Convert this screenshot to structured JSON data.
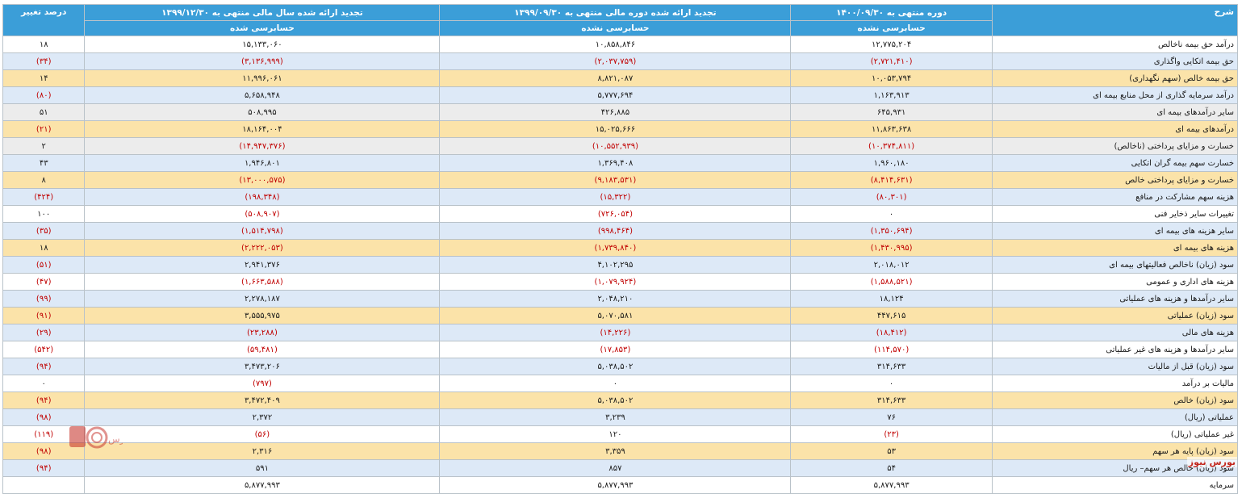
{
  "header": {
    "col_desc": "شرح",
    "col_current": "دوره منتهی به ۱۴۰۰/۰۹/۳۰",
    "col_prev_period": "تجدید ارائه شده دوره مالی منتهی به ۱۳۹۹/۰۹/۳۰",
    "col_prev_year": "تجدید ارائه شده سال مالی منتهی به ۱۳۹۹/۱۲/۳۰",
    "col_change": "درصد تغییر",
    "sub_current": "حسابرسی نشده",
    "sub_prev_period": "حسابرسی نشده",
    "sub_prev_year": "حسابرسی شده"
  },
  "rows": [
    {
      "label": "درآمد حق بیمه ناخالص",
      "cur": "۱۲,۷۷۵,۲۰۴",
      "pp": "۱۰,۸۵۸,۸۴۶",
      "py": "۱۵,۱۳۳,۰۶۰",
      "chg": "۱۸"
    },
    {
      "label": "حق بیمه اتکایی واگذاری",
      "cur": "(۲,۷۲۱,۴۱۰)",
      "pp": "(۲,۰۳۷,۷۵۹)",
      "py": "(۳,۱۳۶,۹۹۹)",
      "chg": "(۳۴)"
    },
    {
      "label": "حق بیمه خالص (سهم نگهداری)",
      "cur": "۱۰,۰۵۳,۷۹۴",
      "pp": "۸,۸۲۱,۰۸۷",
      "py": "۱۱,۹۹۶,۰۶۱",
      "chg": "۱۴"
    },
    {
      "label": "درآمد سرمایه گذاری از محل منابع بیمه ای",
      "cur": "۱,۱۶۳,۹۱۳",
      "pp": "۵,۷۷۷,۶۹۴",
      "py": "۵,۶۵۸,۹۴۸",
      "chg": "(۸۰)"
    },
    {
      "label": "سایر درآمدهای بیمه ای",
      "cur": "۶۴۵,۹۳۱",
      "pp": "۴۲۶,۸۸۵",
      "py": "۵۰۸,۹۹۵",
      "chg": "۵۱"
    },
    {
      "label": "درآمدهای بیمه ای",
      "cur": "۱۱,۸۶۳,۶۳۸",
      "pp": "۱۵,۰۲۵,۶۶۶",
      "py": "۱۸,۱۶۴,۰۰۴",
      "chg": "(۲۱)"
    },
    {
      "label": "خسارت و مزایای پرداختی (ناخالص)",
      "cur": "(۱۰,۳۷۴,۸۱۱)",
      "pp": "(۱۰,۵۵۲,۹۳۹)",
      "py": "(۱۴,۹۴۷,۳۷۶)",
      "chg": "۲"
    },
    {
      "label": "خسارت سهم بیمه گران اتکایی",
      "cur": "۱,۹۶۰,۱۸۰",
      "pp": "۱,۳۶۹,۴۰۸",
      "py": "۱,۹۴۶,۸۰۱",
      "chg": "۴۳"
    },
    {
      "label": "خسارت و مزایای پرداختی خالص",
      "cur": "(۸,۴۱۴,۶۳۱)",
      "pp": "(۹,۱۸۳,۵۳۱)",
      "py": "(۱۳,۰۰۰,۵۷۵)",
      "chg": "۸"
    },
    {
      "label": "هزینه سهم مشارکت در منافع",
      "cur": "(۸۰,۳۰۱)",
      "pp": "(۱۵,۳۲۲)",
      "py": "(۱۹۸,۳۴۸)",
      "chg": "(۴۲۴)"
    },
    {
      "label": "تغییرات سایر ذخایر فنی",
      "cur": "۰",
      "pp": "(۷۲۶,۰۵۴)",
      "py": "(۵۰۸,۹۰۷)",
      "chg": "۱۰۰"
    },
    {
      "label": "سایر هزینه های بیمه ای",
      "cur": "(۱,۳۵۰,۶۹۴)",
      "pp": "(۹۹۸,۴۶۴)",
      "py": "(۱,۵۱۴,۷۹۸)",
      "chg": "(۳۵)"
    },
    {
      "label": "هزینه های بیمه ای",
      "cur": "(۱,۴۳۰,۹۹۵)",
      "pp": "(۱,۷۳۹,۸۴۰)",
      "py": "(۲,۲۲۲,۰۵۳)",
      "chg": "۱۸"
    },
    {
      "label": "سود (زیان) ناخالص فعالیتهای بیمه ای",
      "cur": "۲,۰۱۸,۰۱۲",
      "pp": "۴,۱۰۲,۲۹۵",
      "py": "۲,۹۴۱,۳۷۶",
      "chg": "(۵۱)"
    },
    {
      "label": "هزینه های اداری و عمومی",
      "cur": "(۱,۵۸۸,۵۲۱)",
      "pp": "(۱,۰۷۹,۹۲۴)",
      "py": "(۱,۶۶۳,۵۸۸)",
      "chg": "(۴۷)"
    },
    {
      "label": "سایر درآمدها و هزینه های عملیاتی",
      "cur": "۱۸,۱۲۴",
      "pp": "۲,۰۴۸,۲۱۰",
      "py": "۲,۲۷۸,۱۸۷",
      "chg": "(۹۹)"
    },
    {
      "label": "سود (زیان) عملیاتی",
      "cur": "۴۴۷,۶۱۵",
      "pp": "۵,۰۷۰,۵۸۱",
      "py": "۳,۵۵۵,۹۷۵",
      "chg": "(۹۱)"
    },
    {
      "label": "هزینه های مالی",
      "cur": "(۱۸,۴۱۲)",
      "pp": "(۱۴,۲۲۶)",
      "py": "(۲۳,۲۸۸)",
      "chg": "(۲۹)"
    },
    {
      "label": "سایر درآمدها و هزینه های غیر عملیاتی",
      "cur": "(۱۱۴,۵۷۰)",
      "pp": "(۱۷,۸۵۳)",
      "py": "(۵۹,۴۸۱)",
      "chg": "(۵۴۲)"
    },
    {
      "label": "سود (زیان) قبل از مالیات",
      "cur": "۳۱۴,۶۳۳",
      "pp": "۵,۰۳۸,۵۰۲",
      "py": "۳,۴۷۳,۲۰۶",
      "chg": "(۹۴)"
    },
    {
      "label": "مالیات بر درآمد",
      "cur": "۰",
      "pp": "۰",
      "py": "(۷۹۷)",
      "chg": "۰"
    },
    {
      "label": "سود (زیان) خالص",
      "cur": "۳۱۴,۶۳۳",
      "pp": "۵,۰۳۸,۵۰۲",
      "py": "۳,۴۷۲,۴۰۹",
      "chg": "(۹۴)"
    },
    {
      "label": "عملیاتی (ریال)",
      "cur": "۷۶",
      "pp": "۳,۲۳۹",
      "py": "۲,۳۷۲",
      "chg": "(۹۸)"
    },
    {
      "label": "غیر عملیاتی (ریال)",
      "cur": "(۲۳)",
      "pp": "۱۲۰",
      "py": "(۵۶)",
      "chg": "(۱۱۹)"
    },
    {
      "label": "سود (زیان) پایه هر سهم",
      "cur": "۵۳",
      "pp": "۳,۳۵۹",
      "py": "۲,۳۱۶",
      "chg": "(۹۸)"
    },
    {
      "label": "سود (زیان) خالص هر سهم– ریال",
      "cur": "۵۴",
      "pp": "۸۵۷",
      "py": "۵۹۱",
      "chg": "(۹۴)"
    },
    {
      "label": "سرمایه",
      "cur": "۵,۸۷۷,۹۹۳",
      "pp": "۵,۸۷۷,۹۹۳",
      "py": "۵,۸۷۷,۹۹۳",
      "chg": ""
    }
  ],
  "row_colors": [
    "white",
    "blue",
    "gold",
    "blue",
    "gray",
    "gold",
    "gray",
    "blue",
    "gold",
    "blue",
    "white",
    "blue",
    "gold",
    "blue",
    "white",
    "blue",
    "gold",
    "blue",
    "white",
    "blue",
    "white",
    "gold",
    "blue",
    "white",
    "gold",
    "blue",
    "white"
  ],
  "watermark": {
    "text": "بورس نیوز",
    "logo_text": "بورس"
  },
  "colors": {
    "header": "#3b9ed8",
    "negative": "#c00000",
    "brand": "#c3281f"
  }
}
